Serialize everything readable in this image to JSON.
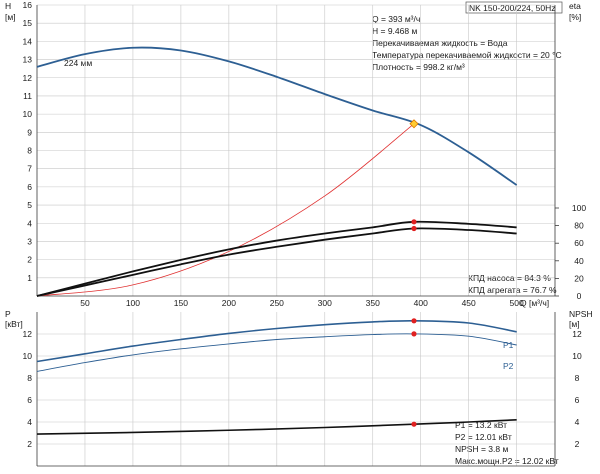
{
  "title": "NK 150-200/224, 50Hz",
  "chart_data": [
    {
      "type": "line",
      "panel": "head-efficiency",
      "x_label": "Q [м³/ч]",
      "x_ticks": [
        50,
        100,
        150,
        200,
        250,
        300,
        350,
        400,
        450,
        500
      ],
      "xlim": [
        0,
        540
      ],
      "left_axis": {
        "label_top": "H",
        "label_unit": "[м]",
        "ylim": [
          0,
          16
        ],
        "ticks": [
          1,
          2,
          3,
          4,
          5,
          6,
          7,
          8,
          9,
          10,
          11,
          12,
          13,
          14,
          15,
          16
        ]
      },
      "right_axis": {
        "label_top": "eta",
        "label_unit": "[%]",
        "ylim": [
          0,
          100
        ],
        "ticks": [
          0,
          20,
          40,
          60,
          80,
          100
        ]
      },
      "series": [
        {
          "name": "224 мм",
          "axis": "left",
          "color": "#2d5f93",
          "x": [
            0,
            50,
            100,
            150,
            200,
            250,
            300,
            350,
            400,
            450,
            500
          ],
          "y": [
            12.6,
            13.3,
            13.65,
            13.5,
            12.9,
            12.05,
            11.1,
            10.2,
            9.4,
            7.9,
            6.1
          ]
        },
        {
          "name": "",
          "axis": "left",
          "color": "#e03030",
          "thin": true,
          "x": [
            0,
            100,
            200,
            300,
            393
          ],
          "y": [
            0,
            0.61,
            2.45,
            5.5,
            9.468
          ]
        },
        {
          "name": "КПД насоса",
          "axis": "right",
          "color": "#111111",
          "x": [
            0,
            50,
            100,
            150,
            200,
            250,
            300,
            350,
            393,
            450,
            500
          ],
          "y": [
            0,
            14,
            28,
            41,
            53,
            63,
            71,
            78,
            84.3,
            82,
            78
          ]
        },
        {
          "name": "КПД агрегата",
          "axis": "right",
          "color": "#111111",
          "x": [
            0,
            50,
            100,
            150,
            200,
            250,
            300,
            350,
            393,
            450,
            500
          ],
          "y": [
            0,
            12,
            24,
            36,
            47,
            56,
            64,
            71,
            76.7,
            75,
            71
          ]
        }
      ],
      "duty_point": {
        "q": 393,
        "h": 9.468
      },
      "efficiency_points": [
        84.3,
        76.7
      ],
      "info_lines": [
        "Q = 393 м³/ч",
        "H = 9.468 м",
        "Перекачиваемая жидкость = Вода",
        "Температура перекачиваемой жидкости = 20 °C",
        "Плотность = 998.2 кг/м³"
      ],
      "efficiency_labels": [
        "КПД насоса = 84.3 %",
        "КПД агрегата = 76.7 %"
      ]
    },
    {
      "type": "line",
      "panel": "power-npsh",
      "xlim": [
        0,
        540
      ],
      "left_axis": {
        "label_top": "P",
        "label_unit": "[кВт]",
        "ylim": [
          0,
          14
        ],
        "ticks": [
          2,
          4,
          6,
          8,
          10,
          12
        ]
      },
      "right_axis": {
        "label_top": "NPSH",
        "label_unit": "[м]",
        "ylim": [
          0,
          14
        ],
        "ticks": [
          2,
          4,
          6,
          8,
          10,
          12
        ]
      },
      "series": [
        {
          "name": "P1",
          "axis": "left",
          "color": "#2d5f93",
          "x": [
            0,
            50,
            100,
            150,
            200,
            250,
            300,
            350,
            393,
            450,
            500
          ],
          "y": [
            9.5,
            10.2,
            10.9,
            11.5,
            12.05,
            12.5,
            12.85,
            13.1,
            13.2,
            13.0,
            12.2
          ]
        },
        {
          "name": "P2",
          "axis": "left",
          "color": "#2d5f93",
          "thin": true,
          "x": [
            0,
            50,
            100,
            150,
            200,
            250,
            300,
            350,
            393,
            450,
            500
          ],
          "y": [
            8.6,
            9.4,
            10.1,
            10.65,
            11.1,
            11.5,
            11.75,
            11.95,
            12.01,
            11.8,
            11.0
          ]
        },
        {
          "name": "NPSH",
          "axis": "right",
          "color": "#111111",
          "x": [
            0,
            100,
            200,
            300,
            393,
            450,
            500
          ],
          "y": [
            2.9,
            3.05,
            3.25,
            3.5,
            3.8,
            4.0,
            4.2
          ]
        }
      ],
      "points": {
        "p1": 13.2,
        "p2": 12.01,
        "npsh": 3.8
      },
      "info_lines": [
        "P1 = 13.2 кВт",
        "P2 = 12.01 кВт",
        "NPSH = 3.8 м",
        "Макс.мощн.P2 = 12.02 кВт"
      ]
    }
  ]
}
